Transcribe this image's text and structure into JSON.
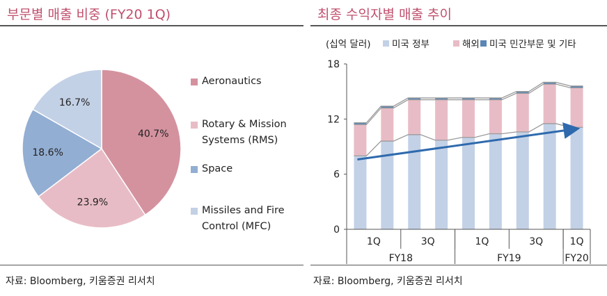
{
  "left": {
    "title": "부문별 매출 비중 (FY20 1Q)",
    "source": "자료: Bloomberg, 키움증권 리서치"
  },
  "right": {
    "title": "최종 수익자별 매출 추이",
    "source": "자료: Bloomberg, 키움증권 리서치"
  },
  "chart_data": [
    {
      "type": "pie",
      "title": "부문별 매출 비중 (FY20 1Q)",
      "slices": [
        {
          "name": "Aeronautics",
          "value": 40.7,
          "label": "40.7%",
          "color": "#d4929f"
        },
        {
          "name": "Rotary & Mission Systems (RMS)",
          "value": 23.9,
          "label": "23.9%",
          "color": "#e8bcc6"
        },
        {
          "name": "Space",
          "value": 18.6,
          "label": "18.6%",
          "color": "#93aed3"
        },
        {
          "name": "Missiles and Fire Control (MFC)",
          "value": 16.7,
          "label": "16.7%",
          "color": "#c3d1e6"
        }
      ]
    },
    {
      "type": "bar",
      "stacked": true,
      "title": "최종 수익자별 매출 추이",
      "unit_label": "(십억 달러)",
      "categories": [
        "FY18 1Q",
        "FY18 2Q",
        "FY18 3Q",
        "FY18 4Q",
        "FY19 1Q",
        "FY19 2Q",
        "FY19 3Q",
        "FY19 4Q",
        "FY20 1Q"
      ],
      "tick_labels": [
        "1Q",
        "",
        "3Q",
        "",
        "1Q",
        "",
        "3Q",
        "",
        "1Q"
      ],
      "groups": [
        {
          "label": "FY18",
          "start": 0,
          "end": 3
        },
        {
          "label": "FY19",
          "start": 4,
          "end": 7
        },
        {
          "label": "FY20",
          "start": 8,
          "end": 8
        }
      ],
      "series": [
        {
          "name": "미국 정부",
          "color": "#c3d1e6",
          "values": [
            8.0,
            9.6,
            10.3,
            9.7,
            10.0,
            10.4,
            10.6,
            11.5,
            11.1
          ]
        },
        {
          "name": "해외",
          "color": "#e8bcc6",
          "values": [
            3.4,
            3.6,
            3.8,
            4.4,
            4.1,
            3.7,
            4.2,
            4.3,
            4.3
          ]
        },
        {
          "name": "미국 민간부문 및 기타",
          "color": "#5b86b5",
          "values": [
            0.2,
            0.2,
            0.2,
            0.2,
            0.2,
            0.2,
            0.2,
            0.2,
            0.2
          ]
        }
      ],
      "ylim": [
        0,
        18
      ],
      "yticks": [
        0,
        6,
        12,
        18
      ],
      "trend_arrow": {
        "from": {
          "index": 0,
          "value": 7.6
        },
        "to": {
          "index": 8,
          "value": 10.9
        },
        "color": "#2e6aad"
      }
    }
  ]
}
